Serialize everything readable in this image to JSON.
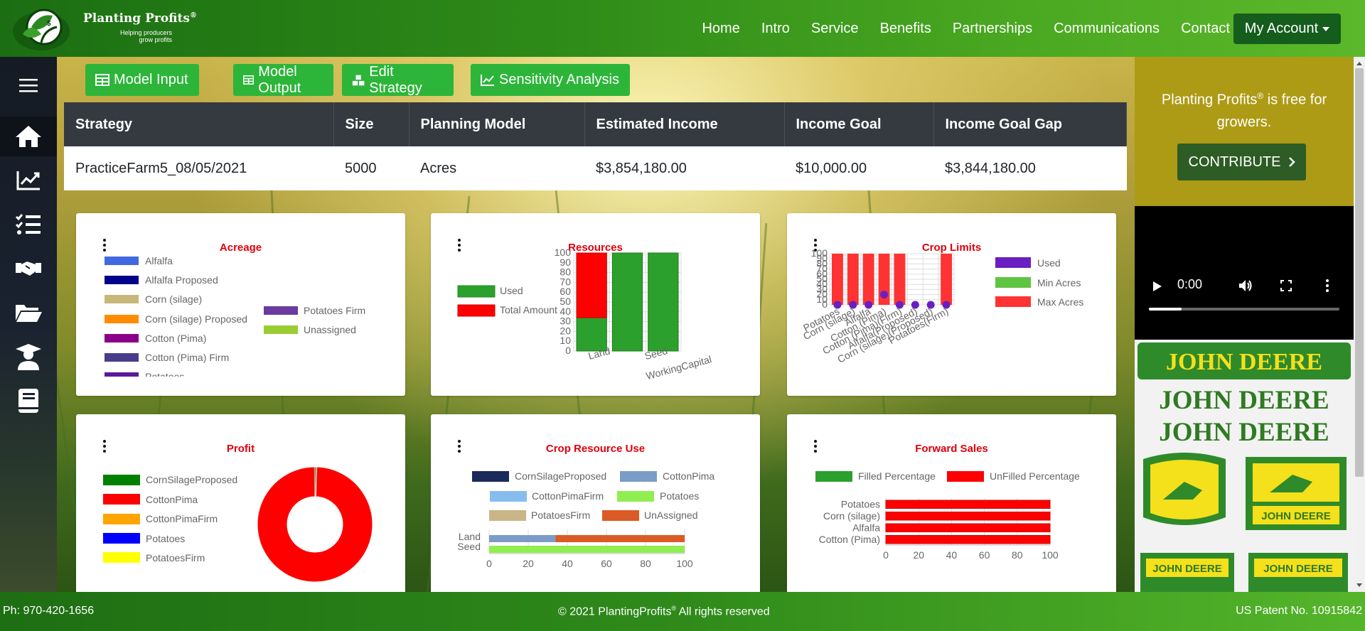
{
  "brand": {
    "name": "Planting Profits",
    "reg": "®",
    "tagline_1": "Helping producers",
    "tagline_2": "grow profits"
  },
  "nav": {
    "links": [
      "Home",
      "Intro",
      "Service",
      "Benefits",
      "Partnerships",
      "Communications",
      "Contact Us"
    ],
    "account": "My Account"
  },
  "sidebar": {
    "icons": [
      "menu-icon",
      "home-icon",
      "chart-line-icon",
      "checklist-icon",
      "handshake-icon",
      "folder-open-icon",
      "graduate-icon",
      "book-icon"
    ]
  },
  "toolbar": {
    "buttons": [
      "Model Input",
      "Model Output",
      "Edit Strategy",
      "Sensitivity Analysis"
    ]
  },
  "table": {
    "headers": [
      "Strategy",
      "Size",
      "Planning Model",
      "Estimated Income",
      "Income Goal",
      "Income Goal Gap"
    ],
    "row": [
      "PracticeFarm5_08/05/2021",
      "5000",
      "Acres",
      "$3,854,180.00",
      "$10,000.00",
      "$3,844,180.00"
    ]
  },
  "cards": {
    "acreage": {
      "title": "Acreage"
    },
    "resources": {
      "title": "Resources"
    },
    "crop_limits": {
      "title": "Crop Limits"
    },
    "profit": {
      "title": "Profit"
    },
    "crop_resource_use": {
      "title": "Crop Resource Use"
    },
    "forward_sales": {
      "title": "Forward Sales"
    }
  },
  "chart_data": [
    {
      "type": "bar",
      "title": "Acreage",
      "legend": [
        {
          "name": "Alfalfa",
          "color": "#4169e1"
        },
        {
          "name": "Alfalfa Proposed",
          "color": "#00008b"
        },
        {
          "name": "Corn (silage)",
          "color": "#c8b77a"
        },
        {
          "name": "Corn (silage) Proposed",
          "color": "#ff8c00"
        },
        {
          "name": "Cotton (Pima)",
          "color": "#8b008b"
        },
        {
          "name": "Cotton (Pima) Firm",
          "color": "#483d8b"
        },
        {
          "name": "Potatoes",
          "color": "#5a1a9b"
        },
        {
          "name": "Potatoes Firm",
          "color": "#6a3aa0"
        },
        {
          "name": "Unassigned",
          "color": "#9acd32"
        }
      ]
    },
    {
      "type": "bar",
      "title": "Resources",
      "categories": [
        "Land",
        "Seed",
        "WorkingCapital"
      ],
      "series": [
        {
          "name": "Used",
          "color": "#2ca02c",
          "values": [
            34,
            100,
            100
          ]
        },
        {
          "name": "Total Amount",
          "color": "#ff0000",
          "values": [
            66,
            0,
            0
          ]
        }
      ],
      "ylim": [
        0,
        100
      ],
      "yticks": [
        "100",
        "90",
        "80",
        "70",
        "60",
        "50",
        "40",
        "30",
        "20",
        "10",
        "0"
      ]
    },
    {
      "type": "bar",
      "title": "Crop Limits",
      "categories": [
        "Potatoes",
        "Corn (silage)",
        "Alfalfa",
        "Cotton (Pima)",
        "Cotton (Pima)(Firm)",
        "Alfalfa(Proposed)",
        "Corn (silage)(Proposed)",
        "Potatoes(Firm)"
      ],
      "series": [
        {
          "name": "Used",
          "color": "#6a1fc0",
          "values": [
            0,
            0,
            0,
            20,
            0,
            0,
            0,
            0
          ]
        },
        {
          "name": "Min Acres",
          "color": "#5fc441",
          "values": [
            0,
            0,
            0,
            0,
            0,
            0,
            0,
            0
          ]
        },
        {
          "name": "Max Acres",
          "color": "#ff3333",
          "values": [
            100,
            100,
            100,
            100,
            100,
            null,
            null,
            100
          ]
        }
      ],
      "ylim": [
        0,
        100
      ],
      "yticks": [
        "100",
        "90",
        "80",
        "70",
        "60",
        "50",
        "40",
        "30",
        "20",
        "10",
        "0"
      ]
    },
    {
      "type": "pie",
      "title": "Profit",
      "labels": [
        "CornSilageProposed",
        "CottonPima",
        "CottonPimaFirm",
        "Potatoes",
        "PotatoesFirm"
      ],
      "colors": [
        "#008000",
        "#ff0000",
        "#ffa500",
        "#0000ff",
        "#ffff00"
      ],
      "values": [
        0.5,
        99.5,
        0,
        0,
        0
      ]
    },
    {
      "type": "bar",
      "title": "Crop Resource Use",
      "categories": [
        "Land",
        "Seed"
      ],
      "series": [
        {
          "name": "CornSilageProposed",
          "color": "#1c2a5a",
          "values": [
            0,
            0
          ]
        },
        {
          "name": "CottonPima",
          "color": "#7b9cc6",
          "values": [
            34,
            0
          ]
        },
        {
          "name": "CottonPimaFirm",
          "color": "#87bcef",
          "values": [
            0,
            0
          ]
        },
        {
          "name": "Potatoes",
          "color": "#90ee50",
          "values": [
            0,
            100
          ]
        },
        {
          "name": "PotatoesFirm",
          "color": "#c9b585",
          "values": [
            0,
            0
          ]
        },
        {
          "name": "UnAssigned",
          "color": "#dc5a25",
          "values": [
            66,
            0
          ]
        }
      ],
      "xlim": [
        0,
        100
      ],
      "xticks": [
        "0",
        "20",
        "40",
        "60",
        "80",
        "100"
      ]
    },
    {
      "type": "bar",
      "title": "Forward Sales",
      "categories": [
        "Potatoes",
        "Corn (silage)",
        "Alfalfa",
        "Cotton (Pima)"
      ],
      "series": [
        {
          "name": "Filled Percentage",
          "color": "#2ca02c",
          "values": [
            0,
            0,
            0,
            0
          ]
        },
        {
          "name": "UnFilled Percentage",
          "color": "#ff0000",
          "values": [
            100,
            100,
            100,
            100
          ]
        }
      ],
      "xlim": [
        0,
        100
      ],
      "xticks": [
        "0",
        "20",
        "40",
        "60",
        "80",
        "100"
      ]
    }
  ],
  "promo": {
    "text_a": "Planting Profits",
    "reg": "®",
    "text_b": " is free for growers.",
    "button": "CONTRIBUTE"
  },
  "video": {
    "time": "0:00",
    "progress": 0.17
  },
  "ad": {
    "logo_text": "JOHN DEERE"
  },
  "footer": {
    "phone": "Ph: 970-420-1656",
    "copyright_a": "© 2021 PlantingProfits",
    "reg": "®",
    "copyright_b": " All rights reserved",
    "patent": "US Patent No. 10915842"
  }
}
